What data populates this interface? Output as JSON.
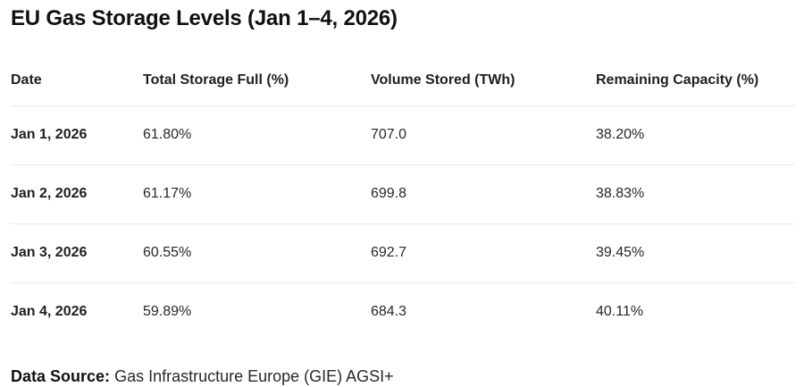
{
  "page": {
    "title": "EU Gas Storage Levels (Jan 1–4, 2026)"
  },
  "table": {
    "columns": [
      "Date",
      "Total Storage Full (%)",
      "Volume Stored (TWh)",
      "Remaining Capacity (%)"
    ],
    "rows": [
      [
        "Jan 1, 2026",
        "61.80%",
        "707.0",
        "38.20%"
      ],
      [
        "Jan 2, 2026",
        "61.17%",
        "699.8",
        "38.83%"
      ],
      [
        "Jan 3, 2026",
        "60.55%",
        "692.7",
        "39.45%"
      ],
      [
        "Jan 4, 2026",
        "59.89%",
        "684.3",
        "40.11%"
      ]
    ]
  },
  "footer": {
    "label": "Data Source:",
    "source": "Gas Infrastructure Europe (GIE) AGSI+"
  },
  "colors": {
    "background": "#ffffff",
    "text": "#1f1f1f",
    "rule": "#e8eaed"
  },
  "chart_data": {
    "type": "table",
    "title": "EU Gas Storage Levels (Jan 1–4, 2026)",
    "columns": [
      "Date",
      "Total Storage Full (%)",
      "Volume Stored (TWh)",
      "Remaining Capacity (%)"
    ],
    "rows": [
      [
        "Jan 1, 2026",
        "61.80%",
        "707.0",
        "38.20%"
      ],
      [
        "Jan 2, 2026",
        "61.17%",
        "699.8",
        "38.83%"
      ],
      [
        "Jan 3, 2026",
        "60.55%",
        "692.7",
        "39.45%"
      ],
      [
        "Jan 4, 2026",
        "59.89%",
        "684.3",
        "40.11%"
      ]
    ],
    "series_numeric": {
      "dates": [
        "2026-01-01",
        "2026-01-02",
        "2026-01-03",
        "2026-01-04"
      ],
      "total_storage_full_pct": [
        61.8,
        61.17,
        60.55,
        59.89
      ],
      "volume_stored_twh": [
        707.0,
        699.8,
        692.7,
        684.3
      ],
      "remaining_capacity_pct": [
        38.2,
        38.83,
        39.45,
        40.11
      ]
    },
    "source": "Gas Infrastructure Europe (GIE) AGSI+"
  }
}
